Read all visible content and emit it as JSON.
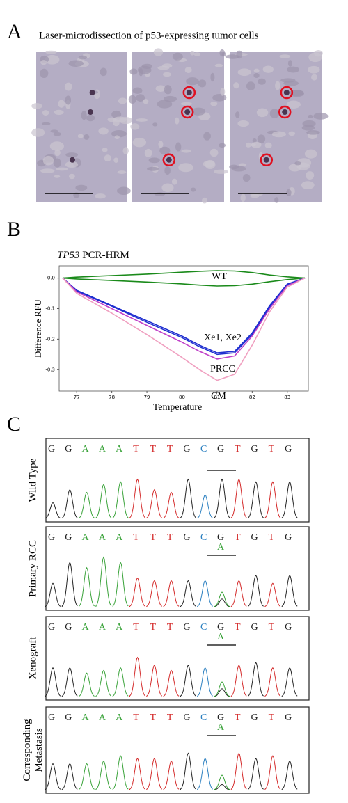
{
  "panel_letters": [
    "A",
    "B",
    "C"
  ],
  "panel_a": {
    "title": "Laser-microdissection of p53-expressing tumor cells"
  },
  "chart_data": {
    "type": "line",
    "title_gene": "TP53",
    "title_rest": "PCR-HRM",
    "x_label": "Temperature",
    "y_label": "Difference RFU",
    "annotations": [
      "WT",
      "Xe1, Xe2",
      "PRCC",
      "CM"
    ],
    "x": [
      76.6,
      77,
      78,
      79,
      80,
      80.5,
      81,
      81.5,
      82,
      82.5,
      83,
      83.5
    ],
    "series": [
      {
        "color": "#1a8a1a",
        "values": [
          0,
          0.003,
          0.008,
          0.013,
          0.019,
          0.022,
          0.024,
          0.023,
          0.018,
          0.01,
          0.004,
          0
        ]
      },
      {
        "color": "#1a8a1a",
        "values": [
          0,
          -0.003,
          -0.008,
          -0.013,
          -0.019,
          -0.023,
          -0.026,
          -0.025,
          -0.02,
          -0.012,
          -0.005,
          0
        ]
      },
      {
        "color": "#1f2fd0",
        "values": [
          0,
          -0.04,
          -0.09,
          -0.14,
          -0.19,
          -0.22,
          -0.245,
          -0.24,
          -0.18,
          -0.09,
          -0.02,
          0
        ]
      },
      {
        "color": "#1f2fd0",
        "values": [
          0,
          -0.042,
          -0.092,
          -0.145,
          -0.195,
          -0.225,
          -0.25,
          -0.245,
          -0.185,
          -0.095,
          -0.022,
          0
        ]
      },
      {
        "color": "#c040c8",
        "values": [
          0,
          -0.045,
          -0.1,
          -0.155,
          -0.21,
          -0.24,
          -0.265,
          -0.255,
          -0.19,
          -0.1,
          -0.025,
          0
        ]
      },
      {
        "color": "#f0a0c0",
        "values": [
          0,
          -0.05,
          -0.115,
          -0.185,
          -0.26,
          -0.3,
          -0.335,
          -0.315,
          -0.22,
          -0.11,
          -0.03,
          0
        ]
      }
    ],
    "xlim": [
      76.5,
      83.6
    ],
    "ylim": [
      -0.37,
      0.04
    ],
    "xticks": [
      77,
      78,
      79,
      80,
      81,
      82,
      83
    ],
    "yticks": [
      {
        "value": 0,
        "label": "0.0"
      },
      -0.1,
      -0.2,
      -0.3
    ]
  },
  "panel_c": {
    "base_colors": {
      "G": "#222222",
      "A": "#3aa33a",
      "T": "#d42a2a",
      "C": "#2a7fc0"
    },
    "rows": [
      {
        "label": [
          "Wild Type"
        ],
        "bases": [
          "G",
          "G",
          "A",
          "A",
          "A",
          "T",
          "T",
          "T",
          "G",
          "C",
          "G",
          "T",
          "G",
          "T",
          "G"
        ]
      },
      {
        "label": [
          "Primary RCC"
        ],
        "bases": [
          "G",
          "G",
          "A",
          "A",
          "A",
          "T",
          "T",
          "T",
          "G",
          "C",
          "G",
          "T",
          "G",
          "T",
          "G"
        ],
        "mutation": "A"
      },
      {
        "label": [
          "Xenograft"
        ],
        "bases": [
          "G",
          "G",
          "A",
          "A",
          "A",
          "T",
          "T",
          "T",
          "G",
          "C",
          "G",
          "T",
          "G",
          "T",
          "G"
        ],
        "mutation": "A"
      },
      {
        "label": [
          "Corresponding",
          "Metastasis"
        ],
        "bases": [
          "G",
          "G",
          "A",
          "A",
          "A",
          "T",
          "T",
          "T",
          "G",
          "C",
          "G",
          "T",
          "G",
          "T",
          "G"
        ],
        "mutation": "A"
      }
    ]
  }
}
